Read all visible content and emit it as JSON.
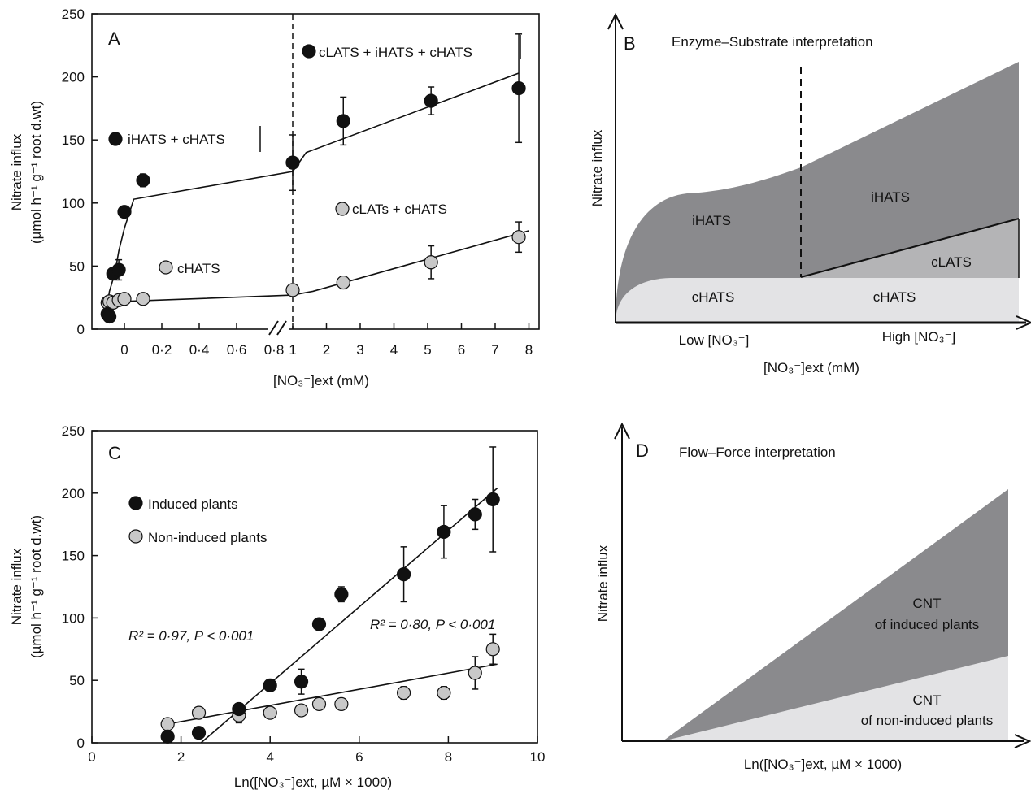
{
  "colors": {
    "dark_fill": "#8a8a8d",
    "mid_fill": "#b4b4b6",
    "light_fill": "#e3e3e5",
    "filled_marker": "#111111",
    "open_marker": "#c8c8c8"
  },
  "panel_a": {
    "letter": "A",
    "ylabel": "Nitrate influx",
    "ylabel2": "(µmol h⁻¹ g⁻¹ root d.wt)",
    "xlabel": "[NO₃⁻]ext (mM)",
    "label_ihats_chats": "iHATS + cHATS",
    "label_clats_ihats_chats": "cLATS + iHATS + cHATS",
    "label_clats_chats": "cLATs + cHATS",
    "label_chats": "cHATS"
  },
  "panel_b": {
    "letter": "B",
    "title": "Enzyme–Substrate interpretation",
    "ylabel": "Nitrate influx",
    "xlabel": "[NO₃⁻]ext (mM)",
    "low": "Low [NO₃⁻]",
    "high": "High [NO₃⁻]",
    "region_ihats_left": "iHATS",
    "region_ihats_right": "iHATS",
    "region_clats": "cLATS",
    "region_chats_left": "cHATS",
    "region_chats_right": "cHATS"
  },
  "panel_c": {
    "letter": "C",
    "ylabel": "Nitrate influx",
    "ylabel2": "(µmol h⁻¹ g⁻¹ root d.wt)",
    "xlabel": "Ln([NO₃⁻]ext, µM × 1000)",
    "legend_induced": "Induced plants",
    "legend_noninduced": "Non-induced plants",
    "stat_induced": "R² = 0·97, P < 0·001",
    "stat_noninduced": "R² = 0·80, P < 0·001"
  },
  "panel_d": {
    "letter": "D",
    "title": "Flow–Force interpretation",
    "ylabel": "Nitrate influx",
    "xlabel": "Ln([NO₃⁻]ext, µM × 1000)",
    "region_induced_1": "CNT",
    "region_induced_2": "of induced plants",
    "region_noninduced_1": "CNT",
    "region_noninduced_2": "of non-induced plants"
  },
  "chart_data": [
    {
      "panel": "A",
      "type": "scatter",
      "xlabel": "[NO₃⁻]ext (mM)",
      "ylabel": "Nitrate influx (µmol h⁻¹ g⁻¹ root d.wt)",
      "ylim": [
        0,
        250
      ],
      "y_ticks": [
        0,
        50,
        100,
        150,
        200,
        250
      ],
      "x_ticks_low": [
        "0",
        "0·2",
        "0·4",
        "0·6",
        "0·8"
      ],
      "x_ticks_high": [
        "1",
        "2",
        "3",
        "4",
        "5",
        "6",
        "7",
        "8"
      ],
      "axis_break": "between 0·8 and 1",
      "series": [
        {
          "marker": "filled",
          "x": [
            "-0.09",
            "-0.08",
            "-0.06",
            "-0.03",
            "0",
            "0.1",
            "1",
            "2.5",
            "5.1",
            "7.7"
          ],
          "y": [
            12,
            10,
            44,
            47,
            93,
            118,
            132,
            165,
            181,
            191
          ],
          "err": [
            3,
            3,
            4,
            8,
            3,
            5,
            22,
            19,
            11,
            43
          ]
        },
        {
          "marker": "open",
          "x": [
            "-0.09",
            "-0.08",
            "-0.06",
            "-0.03",
            "0",
            "0.1",
            "1",
            "2.5",
            "5.1",
            "7.7"
          ],
          "y": [
            21,
            22,
            21,
            23,
            24,
            24,
            31,
            37,
            53,
            73
          ],
          "err": [
            2,
            2,
            2,
            2,
            3,
            4,
            4,
            5,
            13,
            12
          ]
        }
      ],
      "fits": [
        {
          "series": "filled",
          "x": [
            "-0.1",
            "-0.08",
            "-0.05",
            "-0.03",
            "0",
            "0.05",
            "1",
            "1.4",
            "7.7"
          ],
          "y": [
            12,
            30,
            45,
            62,
            80,
            103,
            125,
            140,
            203
          ]
        },
        {
          "series": "open",
          "x": [
            "-0.1",
            "0",
            "1",
            "1.6",
            "8"
          ],
          "y": [
            20,
            22,
            27,
            30,
            78
          ]
        }
      ]
    },
    {
      "panel": "C",
      "type": "scatter",
      "xlabel": "Ln([NO₃⁻]ext, µM × 1000)",
      "ylabel": "Nitrate influx (µmol h⁻¹ g⁻¹ root d.wt)",
      "xlim": [
        0,
        10
      ],
      "ylim": [
        0,
        250
      ],
      "x_ticks": [
        0,
        2,
        4,
        6,
        8,
        10
      ],
      "y_ticks": [
        0,
        50,
        100,
        150,
        200,
        250
      ],
      "series": [
        {
          "name": "Induced plants",
          "x": [
            1.7,
            2.4,
            3.3,
            4.0,
            4.7,
            5.1,
            5.6,
            7.0,
            7.9,
            8.6,
            9.0
          ],
          "y": [
            5,
            8,
            27,
            46,
            49,
            95,
            119,
            135,
            169,
            183,
            195
          ],
          "err": [
            0,
            0,
            3,
            4,
            10,
            3,
            6,
            22,
            21,
            12,
            42
          ]
        },
        {
          "name": "Non-induced plants",
          "x": [
            1.7,
            2.4,
            3.3,
            4.0,
            4.7,
            5.1,
            5.6,
            7.0,
            7.9,
            8.6,
            9.0
          ],
          "y": [
            15,
            24,
            22,
            24,
            26,
            31,
            31,
            40,
            40,
            56,
            75
          ],
          "err": [
            0,
            0,
            6,
            0,
            0,
            0,
            0,
            5,
            5,
            13,
            12
          ]
        }
      ],
      "fits": [
        {
          "series": "Induced plants",
          "x": [
            2.45,
            9.1
          ],
          "y": [
            0,
            204
          ]
        },
        {
          "series": "Non-induced plants",
          "x": [
            1.7,
            9.1
          ],
          "y": [
            15,
            63
          ]
        }
      ],
      "annotations": [
        "R² = 0·97, P < 0·001",
        "R² = 0·80, P < 0·001"
      ]
    }
  ]
}
